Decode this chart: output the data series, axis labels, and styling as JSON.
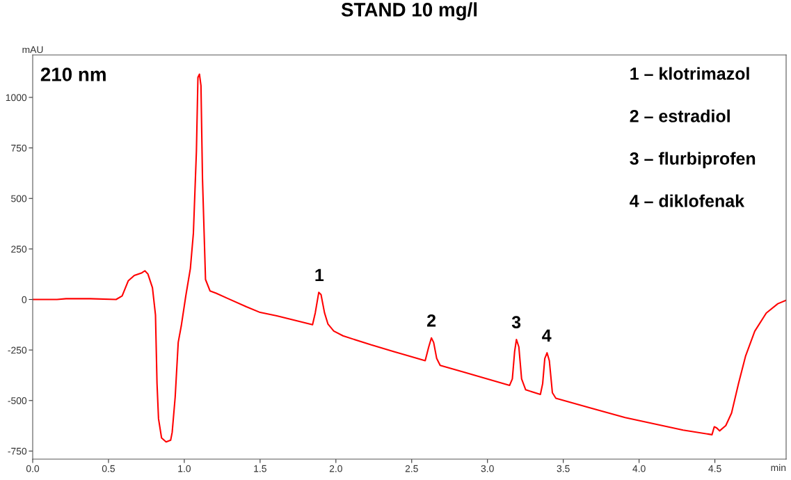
{
  "chart_data": {
    "type": "line",
    "title": "STAND 10 mg/l",
    "xlabel": "min",
    "ylabel": "mAU",
    "xlim": [
      0,
      4.97
    ],
    "xticks": [
      {
        "value": 0,
        "label": "0.0"
      },
      0.5,
      {
        "value": 1,
        "label": "1.0"
      },
      1.5,
      {
        "value": 2,
        "label": "2.0"
      },
      2.5,
      {
        "value": 3,
        "label": "3.0"
      },
      3.5,
      {
        "value": 4,
        "label": "4.0"
      },
      4.5
    ],
    "ylim": [
      -790,
      1210
    ],
    "yticks": [
      -750,
      -500,
      -250,
      0,
      250,
      500,
      750,
      1000
    ],
    "grid": false,
    "legend": false,
    "annotations": [
      "210 nm",
      "1 – klotrimazol",
      "2 – estradiol",
      "3 – flurbiprofen",
      "4 – diklofenak",
      {
        "text": "1",
        "x": 1.89,
        "y": 35
      },
      {
        "text": "2",
        "x": 2.63,
        "y": -190
      },
      {
        "text": "3",
        "x": 3.19,
        "y": -198
      },
      {
        "text": "4",
        "x": 3.39,
        "y": -264
      }
    ],
    "series": [
      {
        "color": "#ff0000",
        "x": [
          0,
          0.16,
          0.22,
          0.38,
          0.55,
          0.59,
          0.63,
          0.67,
          0.72,
          0.74,
          0.76,
          0.79,
          0.81,
          0.82,
          0.83,
          0.85,
          0.88,
          0.91,
          0.92,
          0.94,
          0.96,
          0.98,
          1.01,
          1.04,
          1.06,
          1.08,
          1.09,
          1.1,
          1.11,
          1.12,
          1.14,
          1.17,
          1.21,
          1.29,
          1.41,
          1.5,
          1.61,
          1.846,
          1.864,
          1.887,
          1.902,
          1.925,
          1.948,
          1.986,
          2.047,
          2.23,
          2.383,
          2.589,
          2.612,
          2.63,
          2.645,
          2.665,
          2.688,
          2.841,
          3.146,
          3.164,
          3.179,
          3.191,
          3.207,
          3.225,
          3.252,
          3.349,
          3.364,
          3.378,
          3.393,
          3.408,
          3.428,
          3.451,
          3.68,
          3.908,
          4.29,
          4.481,
          4.496,
          4.511,
          4.531,
          4.572,
          4.61,
          4.656,
          4.702,
          4.763,
          4.839,
          4.915,
          4.969
        ],
        "values": [
          0,
          0,
          4,
          4,
          0,
          18,
          92,
          119,
          132,
          142,
          126,
          58,
          -77,
          -415,
          -590,
          -685,
          -705,
          -696,
          -658,
          -482,
          -212,
          -131,
          18,
          153,
          328,
          734,
          1099,
          1115,
          1058,
          599,
          99,
          42,
          31,
          4,
          -36,
          -64,
          -81,
          -125,
          -66,
          35,
          24,
          -66,
          -122,
          -156,
          -180,
          -224,
          -258,
          -303,
          -236,
          -190,
          -213,
          -292,
          -326,
          -359,
          -425,
          -393,
          -258,
          -198,
          -235,
          -393,
          -447,
          -470,
          -416,
          -292,
          -264,
          -303,
          -461,
          -489,
          -537,
          -584,
          -646,
          -669,
          -630,
          -635,
          -650,
          -624,
          -562,
          -416,
          -281,
          -157,
          -67,
          -21,
          -4
        ]
      }
    ]
  }
}
